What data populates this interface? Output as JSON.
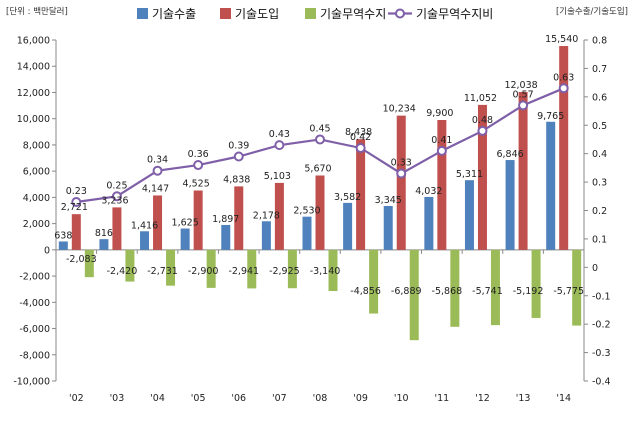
{
  "chart_data": {
    "type": "bar",
    "categories": [
      "'02",
      "'03",
      "'04",
      "'05",
      "'06",
      "'07",
      "'08",
      "'09",
      "'10",
      "'11",
      "'12",
      "'13",
      "'14"
    ],
    "series": [
      {
        "name": "기술수출",
        "type": "bar",
        "axis": "left",
        "color": "#4f81bd",
        "values": [
          638,
          816,
          1416,
          1625,
          1897,
          2178,
          2530,
          3582,
          3345,
          4032,
          5311,
          6846,
          9765
        ],
        "labels": [
          "638",
          "816",
          "1,416",
          "1,625",
          "1,897",
          "2,178",
          "2,530",
          "3,582",
          "3,345",
          "4,032",
          "5,311",
          "6,846",
          "9,765"
        ]
      },
      {
        "name": "기술도입",
        "type": "bar",
        "axis": "left",
        "color": "#c0504d",
        "values": [
          2721,
          3236,
          4147,
          4525,
          4838,
          5103,
          5670,
          8438,
          10234,
          9900,
          11052,
          12038,
          15540
        ],
        "labels": [
          "2,721",
          "3,236",
          "4,147",
          "4,525",
          "4,838",
          "5,103",
          "5,670",
          "8,438",
          "10,234",
          "9,900",
          "11,052",
          "12,038",
          "15,540"
        ]
      },
      {
        "name": "기술무역수지",
        "type": "bar",
        "axis": "left",
        "color": "#9bbb59",
        "values": [
          -2083,
          -2420,
          -2731,
          -2900,
          -2941,
          -2925,
          -3140,
          -4856,
          -6889,
          -5868,
          -5741,
          -5192,
          -5775
        ],
        "labels": [
          "-2,083",
          "-2,420",
          "-2,731",
          "-2,900",
          "-2,941",
          "-2,925",
          "-3,140",
          "-4,856",
          "-6,889",
          "-5,868",
          "-5,741",
          "-5,192",
          "-5,775"
        ]
      },
      {
        "name": "기술무역수지비",
        "type": "line",
        "axis": "right",
        "color": "#7f5fa8",
        "values": [
          0.23,
          0.25,
          0.34,
          0.36,
          0.39,
          0.43,
          0.45,
          0.42,
          0.33,
          0.41,
          0.48,
          0.57,
          0.63
        ],
        "labels": [
          "0.23",
          "0.25",
          "0.34",
          "0.36",
          "0.39",
          "0.43",
          "0.45",
          "0.42",
          "0.33",
          "0.41",
          "0.48",
          "0.57",
          "0.63"
        ]
      }
    ],
    "left_axis": {
      "unit_label": "[단위 : 백만달러]",
      "ylim": [
        -10000,
        16000
      ],
      "ticks": [
        "16,000",
        "14,000",
        "12,000",
        "10,000",
        "8,000",
        "6,000",
        "4,000",
        "2,000",
        "0",
        "-2,000",
        "-4,000",
        "-6,000",
        "-8,000",
        "-10,000"
      ],
      "tick_values": [
        16000,
        14000,
        12000,
        10000,
        8000,
        6000,
        4000,
        2000,
        0,
        -2000,
        -4000,
        -6000,
        -8000,
        -10000
      ]
    },
    "right_axis": {
      "unit_label": "[기술수출/기술도입]",
      "ylim": [
        -0.4,
        0.8
      ],
      "ticks": [
        "0.8",
        "0.7",
        "0.6",
        "0.5",
        "0.4",
        "0.3",
        "0.2",
        "0.1",
        "0",
        "-0.1",
        "-0.2",
        "-0.3",
        "-0.4"
      ],
      "tick_values": [
        0.8,
        0.7,
        0.6,
        0.5,
        0.4,
        0.3,
        0.2,
        0.1,
        0,
        -0.1,
        -0.2,
        -0.3,
        -0.4
      ]
    },
    "legend_position": "top",
    "grid": false
  }
}
